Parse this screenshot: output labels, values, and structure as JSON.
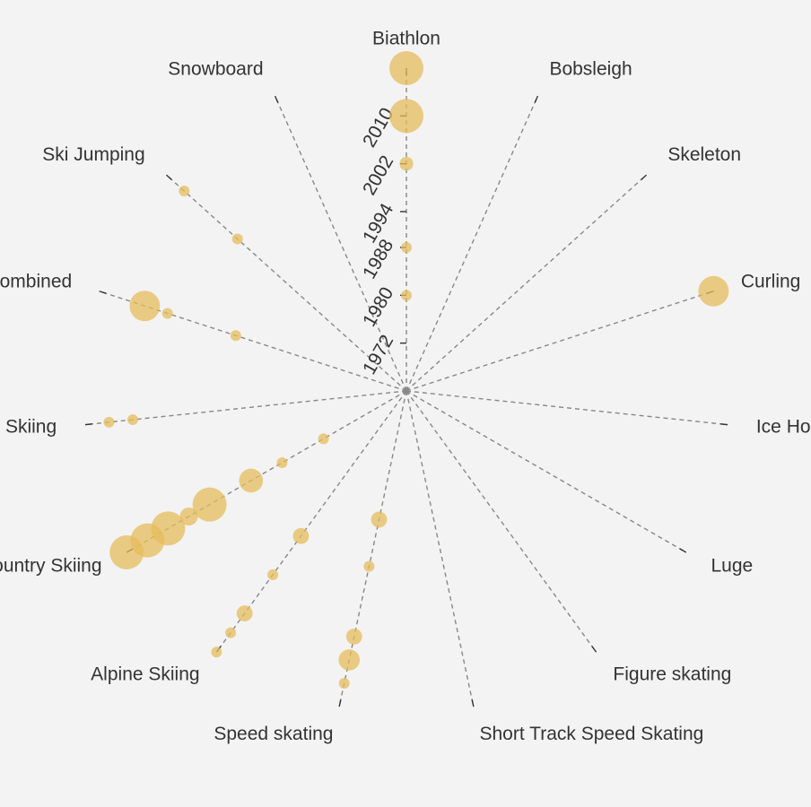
{
  "chart_data": {
    "type": "scatter",
    "layout": "radial",
    "title": "",
    "color": "#e5bc5c",
    "axis_color": "#888888",
    "background": "#f3f3f3",
    "year_range": [
      1964,
      2018
    ],
    "year_ticks": [
      1972,
      1980,
      1988,
      1994,
      2002,
      2010
    ],
    "sports": [
      {
        "name": "Biathlon",
        "points": [
          {
            "year": 1980,
            "value": 1
          },
          {
            "year": 1988,
            "value": 1
          },
          {
            "year": 2002,
            "value": 2
          },
          {
            "year": 2010,
            "value": 20
          },
          {
            "year": 2018,
            "value": 18
          }
        ]
      },
      {
        "name": "Bobsleigh",
        "points": []
      },
      {
        "name": "Skeleton",
        "points": []
      },
      {
        "name": "Curling",
        "points": [
          {
            "year": 2018,
            "value": 14
          }
        ]
      },
      {
        "name": "Ice Hockey",
        "points": []
      },
      {
        "name": "Luge",
        "points": []
      },
      {
        "name": "Figure skating",
        "points": []
      },
      {
        "name": "Short Track Speed Skating",
        "points": []
      },
      {
        "name": "Speed skating",
        "points": [
          {
            "year": 1986,
            "value": 3
          },
          {
            "year": 1994,
            "value": 1
          },
          {
            "year": 2006,
            "value": 3
          },
          {
            "year": 2010,
            "value": 6
          },
          {
            "year": 2014,
            "value": 1
          }
        ]
      },
      {
        "name": "Alpine Skiing",
        "points": [
          {
            "year": 1994,
            "value": 3
          },
          {
            "year": 2002,
            "value": 1
          },
          {
            "year": 2010,
            "value": 3
          },
          {
            "year": 2014,
            "value": 1
          },
          {
            "year": 2018,
            "value": 1
          }
        ]
      },
      {
        "name": "Cross Country Skiing",
        "points": [
          {
            "year": 1980,
            "value": 1
          },
          {
            "year": 1988,
            "value": 1
          },
          {
            "year": 1994,
            "value": 8
          },
          {
            "year": 2002,
            "value": 30
          },
          {
            "year": 2006,
            "value": 4
          },
          {
            "year": 2010,
            "value": 30
          },
          {
            "year": 2014,
            "value": 35
          },
          {
            "year": 2018,
            "value": 50
          }
        ]
      },
      {
        "name": "Freestyle Skiing",
        "points": [
          {
            "year": 2010,
            "value": 1
          },
          {
            "year": 2014,
            "value": 1
          }
        ]
      },
      {
        "name": "Nordic Combined",
        "points": [
          {
            "year": 1994,
            "value": 1
          },
          {
            "year": 2006,
            "value": 1
          },
          {
            "year": 2010,
            "value": 14
          }
        ]
      },
      {
        "name": "Ski Jumping",
        "points": [
          {
            "year": 2002,
            "value": 1
          },
          {
            "year": 2014,
            "value": 1
          }
        ]
      },
      {
        "name": "Snowboard",
        "points": []
      }
    ]
  }
}
